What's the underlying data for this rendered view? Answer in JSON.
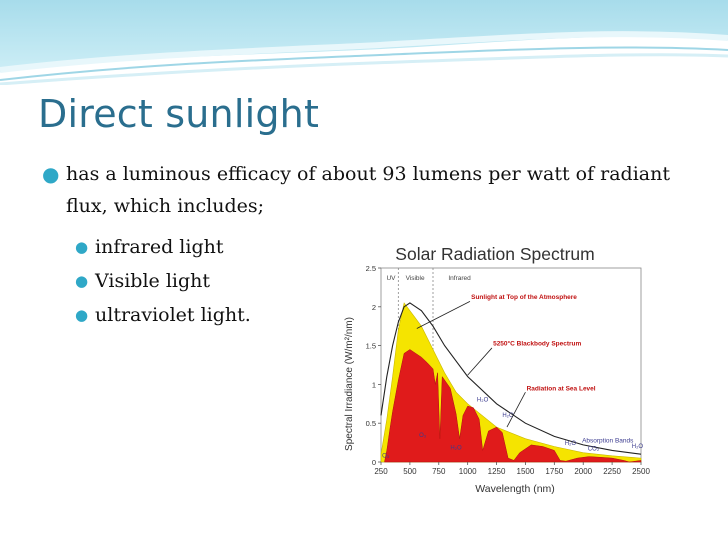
{
  "slide": {
    "title": "Direct sunlight",
    "bullet": "has a luminous efficacy of about 93 lumens per watt of radiant flux, which includes;",
    "sub_bullets": [
      " infrared light",
      "Visible light",
      "ultraviolet light."
    ],
    "accent_color": "#2fa8c7",
    "title_color": "#2a6e8e"
  },
  "chart_data": {
    "type": "area",
    "title": "Solar Radiation Spectrum",
    "xlabel": "Wavelength (nm)",
    "ylabel": "Spectral Irradiance (W/m²/nm)",
    "xlim": [
      250,
      2500
    ],
    "ylim": [
      0,
      2.5
    ],
    "x_ticks": [
      "250",
      "500",
      "750",
      "1000",
      "1250",
      "1500",
      "1750",
      "2000",
      "2250",
      "2500"
    ],
    "y_ticks": [
      "0",
      "0.5",
      "1",
      "1.5",
      "2",
      "2.5"
    ],
    "bands": [
      "UV",
      "Visible",
      "Infrared"
    ],
    "band_edges": [
      400,
      700
    ],
    "grid": false,
    "series": [
      {
        "name": "Sunlight at Top of the Atmosphere",
        "color": "#f5e400",
        "x": [
          250,
          300,
          350,
          400,
          450,
          500,
          550,
          600,
          700,
          800,
          900,
          1000,
          1250,
          1500,
          1750,
          2000,
          2250,
          2500
        ],
        "values": [
          0.1,
          0.55,
          1.1,
          1.7,
          2.05,
          1.95,
          1.85,
          1.75,
          1.45,
          1.15,
          0.9,
          0.75,
          0.45,
          0.3,
          0.2,
          0.12,
          0.08,
          0.05
        ]
      },
      {
        "name": "5250°C Blackbody Spectrum",
        "color": "#222222",
        "x": [
          250,
          300,
          350,
          400,
          450,
          500,
          550,
          600,
          700,
          800,
          900,
          1000,
          1250,
          1500,
          1750,
          2000,
          2250,
          2500
        ],
        "values": [
          0.6,
          1.1,
          1.5,
          1.8,
          2.0,
          2.05,
          2.0,
          1.95,
          1.75,
          1.5,
          1.3,
          1.1,
          0.75,
          0.5,
          0.33,
          0.22,
          0.15,
          0.1
        ]
      },
      {
        "name": "Radiation at Sea Level",
        "color": "#e01b1b",
        "x": [
          280,
          300,
          330,
          350,
          400,
          450,
          500,
          550,
          600,
          650,
          700,
          720,
          740,
          760,
          780,
          850,
          900,
          930,
          960,
          1000,
          1050,
          1100,
          1130,
          1180,
          1250,
          1300,
          1350,
          1400,
          1450,
          1550,
          1650,
          1750,
          1800,
          1850,
          1950,
          2050,
          2150,
          2250,
          2350,
          2400,
          2500
        ],
        "values": [
          0,
          0.15,
          0.45,
          0.65,
          1.05,
          1.4,
          1.45,
          1.4,
          1.35,
          1.28,
          1.2,
          1.0,
          1.15,
          0.3,
          1.1,
          0.95,
          0.62,
          0.3,
          0.6,
          0.72,
          0.7,
          0.55,
          0.15,
          0.4,
          0.45,
          0.38,
          0.05,
          0.02,
          0.12,
          0.22,
          0.2,
          0.15,
          0.02,
          0.01,
          0.05,
          0.07,
          0.06,
          0.05,
          0.02,
          0.0,
          0.02
        ]
      }
    ],
    "annotations": [
      {
        "text": "Sunlight at Top of the Atmosphere",
        "x": 1030,
        "y": 2.1
      },
      {
        "text": "5250°C Blackbody Spectrum",
        "x": 1220,
        "y": 1.5
      },
      {
        "text": "Radiation at Sea Level",
        "x": 1510,
        "y": 0.92
      },
      {
        "text": "Absorption Bands",
        "x": 1990,
        "y": 0.25
      },
      {
        "text": "H₂O",
        "x": 1080,
        "y": 0.78
      },
      {
        "text": "H₂O",
        "x": 1300,
        "y": 0.58
      },
      {
        "text": "O₃",
        "x": 580,
        "y": 0.32
      },
      {
        "text": "H₂O",
        "x": 850,
        "y": 0.16
      },
      {
        "text": "H₂O",
        "x": 1840,
        "y": 0.22
      },
      {
        "text": "CO₂",
        "x": 2040,
        "y": 0.15
      },
      {
        "text": "H₂O",
        "x": 2420,
        "y": 0.18
      },
      {
        "text": "O₃",
        "x": 260,
        "y": 0.06
      }
    ]
  }
}
